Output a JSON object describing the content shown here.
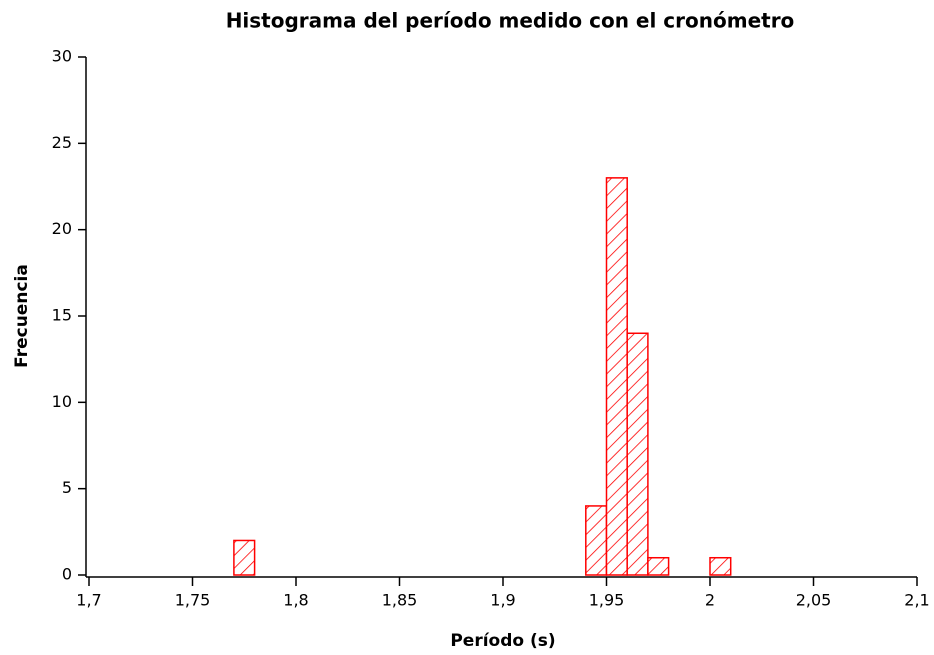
{
  "chart_data": {
    "type": "histogram",
    "title": "Histograma del período medido con el cronómetro",
    "x_label": "Período (s)",
    "y_label": "Frecuencia",
    "bins": [
      1.77,
      1.78,
      1.79,
      1.8,
      1.81,
      1.82,
      1.83,
      1.84,
      1.85,
      1.86,
      1.87,
      1.88,
      1.89,
      1.9,
      1.91,
      1.92,
      1.93,
      1.94,
      1.95,
      1.96,
      1.97,
      1.98,
      1.99,
      2.0,
      2.01
    ],
    "values": [
      2,
      0,
      0,
      0,
      0,
      0,
      0,
      0,
      0,
      0,
      0,
      0,
      0,
      0,
      0,
      0,
      0,
      4,
      23,
      14,
      1,
      0,
      0,
      1
    ],
    "color": "#ff0000",
    "xlim": [
      1.7,
      2.1
    ],
    "xticks": [
      {
        "value": 1.7,
        "label": "1,7"
      },
      {
        "value": 1.75,
        "label": "1,75"
      },
      {
        "value": 1.8,
        "label": "1,8"
      },
      {
        "value": 1.85,
        "label": "1,85"
      },
      {
        "value": 1.9,
        "label": "1,9"
      },
      {
        "value": 1.95,
        "label": "1,95"
      },
      2,
      {
        "value": 2.05,
        "label": "2,05"
      },
      {
        "value": 2.1,
        "label": "2,1"
      }
    ],
    "ylim": [
      0,
      30
    ],
    "yticks": [
      0,
      5,
      10,
      15,
      20,
      25,
      30
    ]
  }
}
